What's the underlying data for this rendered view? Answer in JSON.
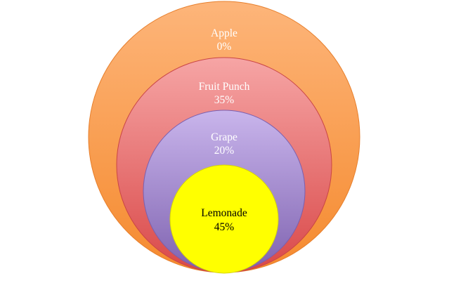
{
  "diagram": {
    "type": "nested-circles",
    "circles": [
      {
        "id": "apple",
        "name": "Apple",
        "value_label": "0%",
        "color": "#f79646",
        "text_color": "#ffffff"
      },
      {
        "id": "fruit-punch",
        "name": "Fruit Punch",
        "value_label": "35%",
        "color": "#e05a5a",
        "text_color": "#ffffff"
      },
      {
        "id": "grape",
        "name": "Grape",
        "value_label": "20%",
        "color": "#9f86c9",
        "text_color": "#ffffff"
      },
      {
        "id": "lemonade",
        "name": "Lemonade",
        "value_label": "45%",
        "color": "#ffff00",
        "text_color": "#000000"
      }
    ]
  }
}
